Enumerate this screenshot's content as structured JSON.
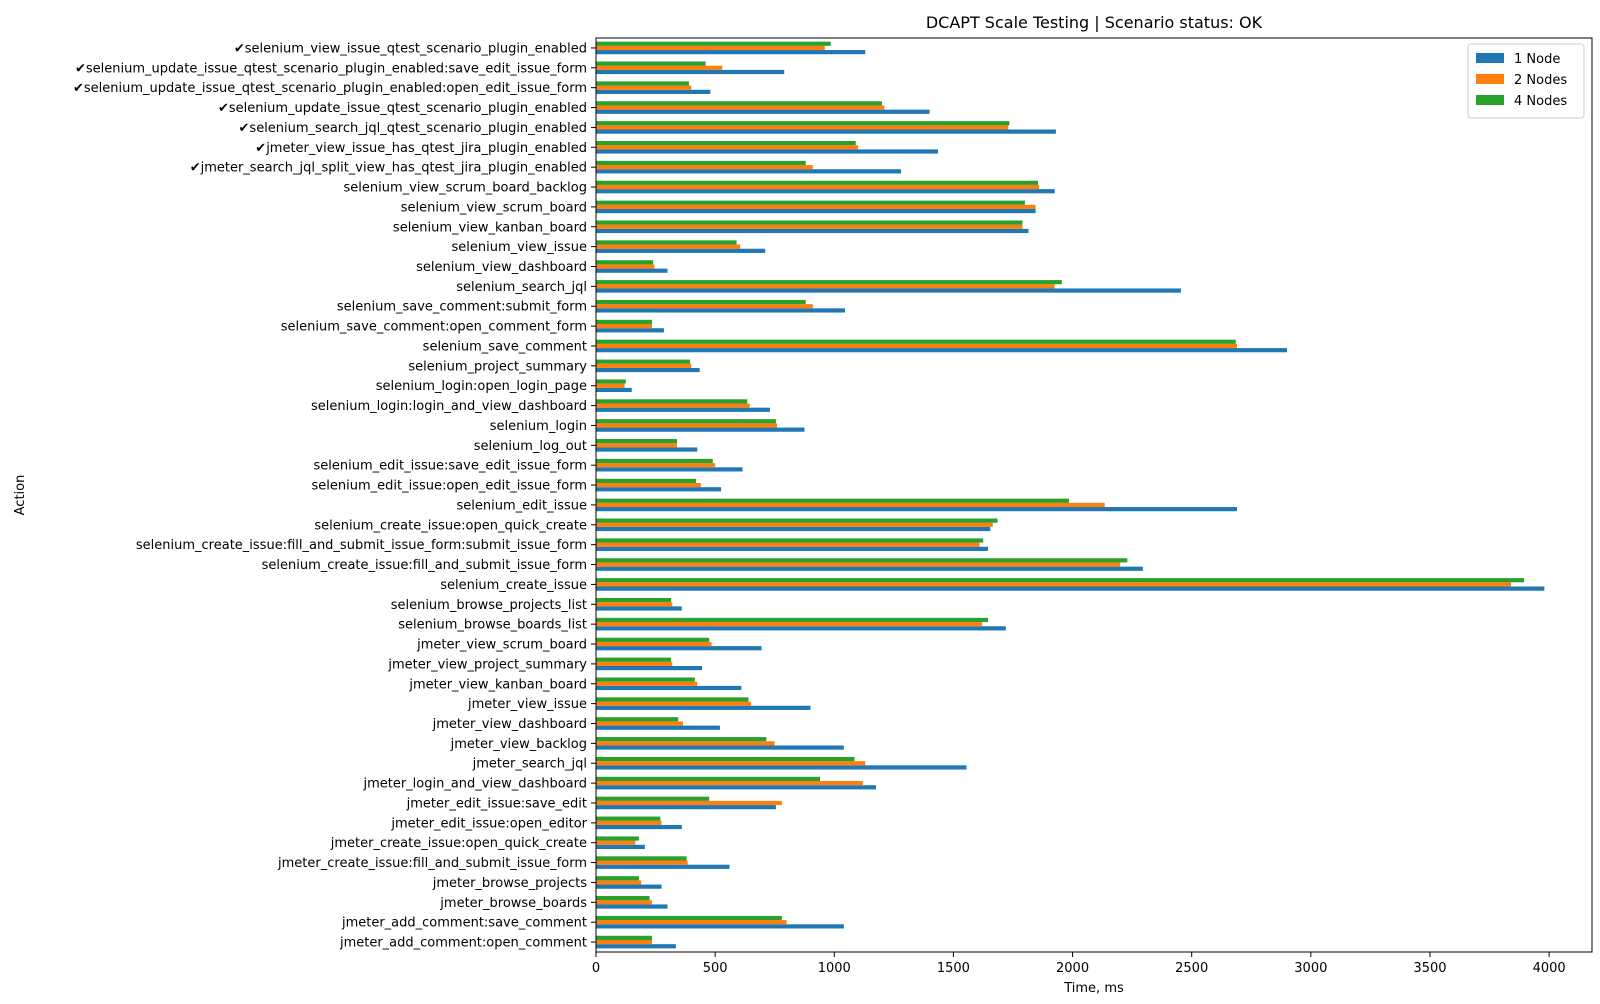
{
  "chart_data": {
    "type": "bar",
    "orientation": "horizontal",
    "title": "DCAPT Scale Testing | Scenario status: OK",
    "xlabel": "Time, ms",
    "ylabel": "Action",
    "xlim": [
      0,
      4180
    ],
    "xticks": [
      0,
      500,
      1000,
      1500,
      2000,
      2500,
      3000,
      3500,
      4000
    ],
    "grid": false,
    "legend_position": "top-right",
    "categories": [
      "✔selenium_view_issue_qtest_scenario_plugin_enabled",
      "✔selenium_update_issue_qtest_scenario_plugin_enabled:save_edit_issue_form",
      "✔selenium_update_issue_qtest_scenario_plugin_enabled:open_edit_issue_form",
      "✔selenium_update_issue_qtest_scenario_plugin_enabled",
      "✔selenium_search_jql_qtest_scenario_plugin_enabled",
      "✔jmeter_view_issue_has_qtest_jira_plugin_enabled",
      "✔jmeter_search_jql_split_view_has_qtest_jira_plugin_enabled",
      "selenium_view_scrum_board_backlog",
      "selenium_view_scrum_board",
      "selenium_view_kanban_board",
      "selenium_view_issue",
      "selenium_view_dashboard",
      "selenium_search_jql",
      "selenium_save_comment:submit_form",
      "selenium_save_comment:open_comment_form",
      "selenium_save_comment",
      "selenium_project_summary",
      "selenium_login:open_login_page",
      "selenium_login:login_and_view_dashboard",
      "selenium_login",
      "selenium_log_out",
      "selenium_edit_issue:save_edit_issue_form",
      "selenium_edit_issue:open_edit_issue_form",
      "selenium_edit_issue",
      "selenium_create_issue:open_quick_create",
      "selenium_create_issue:fill_and_submit_issue_form:submit_issue_form",
      "selenium_create_issue:fill_and_submit_issue_form",
      "selenium_create_issue",
      "selenium_browse_projects_list",
      "selenium_browse_boards_list",
      "jmeter_view_scrum_board",
      "jmeter_view_project_summary",
      "jmeter_view_kanban_board",
      "jmeter_view_issue",
      "jmeter_view_dashboard",
      "jmeter_view_backlog",
      "jmeter_search_jql",
      "jmeter_login_and_view_dashboard",
      "jmeter_edit_issue:save_edit",
      "jmeter_edit_issue:open_editor",
      "jmeter_create_issue:open_quick_create",
      "jmeter_create_issue:fill_and_submit_issue_form",
      "jmeter_browse_projects",
      "jmeter_browse_boards",
      "jmeter_add_comment:save_comment",
      "jmeter_add_comment:open_comment"
    ],
    "series": [
      {
        "name": "1 Node",
        "color": "#1f77b4",
        "values": [
          1130,
          790,
          480,
          1400,
          1930,
          1435,
          1280,
          1925,
          1845,
          1815,
          710,
          300,
          2455,
          1045,
          285,
          2900,
          435,
          150,
          730,
          875,
          425,
          615,
          525,
          2690,
          1655,
          1645,
          2295,
          3980,
          360,
          1720,
          695,
          445,
          610,
          900,
          520,
          1040,
          1555,
          1175,
          755,
          360,
          205,
          560,
          275,
          300,
          1040,
          335
        ]
      },
      {
        "name": "2 Nodes",
        "color": "#ff7f0e",
        "values": [
          960,
          530,
          400,
          1210,
          1730,
          1100,
          910,
          1860,
          1845,
          1790,
          605,
          245,
          1925,
          910,
          235,
          2690,
          400,
          120,
          645,
          760,
          340,
          500,
          440,
          2135,
          1665,
          1610,
          2200,
          3840,
          320,
          1620,
          485,
          320,
          425,
          650,
          365,
          750,
          1130,
          1120,
          780,
          275,
          165,
          385,
          190,
          235,
          800,
          235
        ]
      },
      {
        "name": "4 Nodes",
        "color": "#2ca02c",
        "values": [
          985,
          460,
          390,
          1200,
          1735,
          1090,
          880,
          1855,
          1800,
          1790,
          590,
          240,
          1955,
          880,
          235,
          2685,
          395,
          125,
          635,
          755,
          340,
          490,
          420,
          1985,
          1685,
          1625,
          2230,
          3895,
          315,
          1645,
          475,
          315,
          415,
          640,
          345,
          715,
          1085,
          940,
          475,
          270,
          180,
          380,
          180,
          225,
          780,
          235
        ]
      }
    ]
  }
}
